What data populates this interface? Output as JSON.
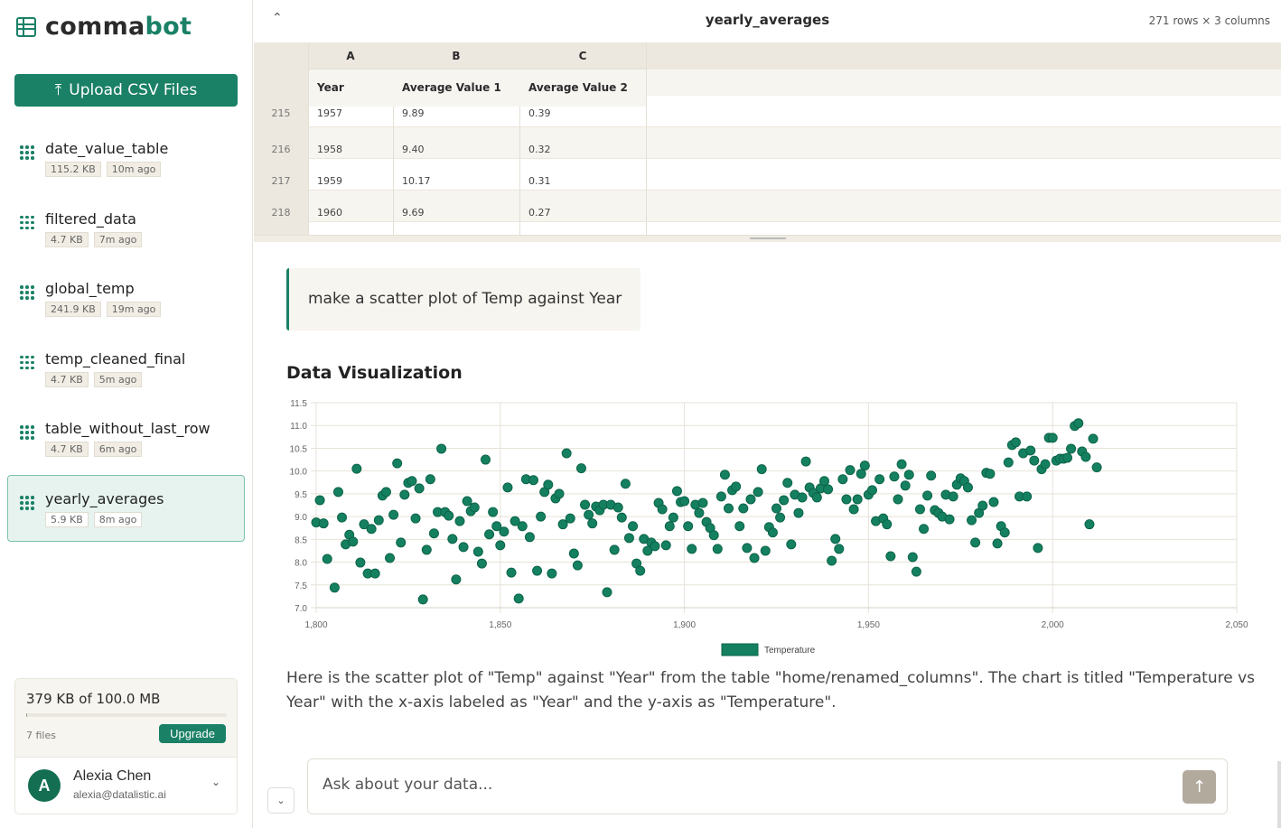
{
  "app": {
    "name_a": "comma",
    "name_b": "bot",
    "upload_label": "Upload CSV Files"
  },
  "files": [
    {
      "name": "date_value_table",
      "size": "115.2 KB",
      "age": "10m ago"
    },
    {
      "name": "filtered_data",
      "size": "4.7 KB",
      "age": "7m ago"
    },
    {
      "name": "global_temp",
      "size": "241.9 KB",
      "age": "19m ago"
    },
    {
      "name": "temp_cleaned_final",
      "size": "4.7 KB",
      "age": "5m ago"
    },
    {
      "name": "table_without_last_row",
      "size": "4.7 KB",
      "age": "6m ago"
    },
    {
      "name": "yearly_averages",
      "size": "5.9 KB",
      "age": "8m ago",
      "active": true
    }
  ],
  "usage": {
    "text": "379 KB of 100.0 MB",
    "fraction": 0.0037,
    "files": "7 files",
    "upgrade": "Upgrade"
  },
  "user": {
    "initial": "A",
    "name": "Alexia Chen",
    "email": "alexia@datalistic.ai"
  },
  "table": {
    "title": "yearly_averages",
    "dims": "271 rows × 3 columns",
    "col_letters": [
      "A",
      "B",
      "C"
    ],
    "headers": [
      "Year",
      "Average Value 1",
      "Average Value 2"
    ],
    "rows": [
      {
        "n": "215",
        "cells": [
          "1957",
          "9.89",
          "0.39"
        ]
      },
      {
        "n": "216",
        "cells": [
          "1958",
          "9.40",
          "0.32"
        ]
      },
      {
        "n": "217",
        "cells": [
          "1959",
          "10.17",
          "0.31"
        ]
      },
      {
        "n": "218",
        "cells": [
          "1960",
          "9.69",
          "0.27"
        ]
      }
    ]
  },
  "chat": {
    "user_msg": "make a scatter plot of Temp against Year",
    "viz_title": "Data Visualization",
    "answer": "Here is the scatter plot of \"Temp\" against \"Year\" from the table \"home/renamed_columns\". The chart is titled \"Temperature vs Year\" with the x-axis labeled as \"Year\" and the y-axis as \"Temperature\".",
    "input_placeholder": "Ask about your data..."
  },
  "colors": {
    "accent": "#1a8066",
    "point": "#148060"
  },
  "chart_data": {
    "type": "scatter",
    "xlim": [
      1800,
      2050
    ],
    "ylim": [
      7.0,
      11.5
    ],
    "xticks": [
      "1,800",
      "1,850",
      "1,900",
      "1,950",
      "2,000",
      "2,050"
    ],
    "yticks": [
      "7.0",
      "7.5",
      "8.0",
      "8.5",
      "9.0",
      "9.5",
      "10.0",
      "10.5",
      "11.0",
      "11.5"
    ],
    "legend": "Temperature",
    "legend_position": "bottom",
    "grid": true,
    "points": [
      [
        1800,
        8.87
      ],
      [
        1801,
        9.36
      ],
      [
        1802,
        8.85
      ],
      [
        1803,
        8.07
      ],
      [
        1805,
        7.44
      ],
      [
        1806,
        9.54
      ],
      [
        1807,
        8.98
      ],
      [
        1808,
        8.39
      ],
      [
        1809,
        8.6
      ],
      [
        1810,
        8.45
      ],
      [
        1811,
        10.05
      ],
      [
        1812,
        7.99
      ],
      [
        1813,
        8.83
      ],
      [
        1814,
        7.75
      ],
      [
        1815,
        8.73
      ],
      [
        1816,
        7.75
      ],
      [
        1817,
        8.92
      ],
      [
        1818,
        9.46
      ],
      [
        1819,
        9.54
      ],
      [
        1820,
        8.09
      ],
      [
        1821,
        9.04
      ],
      [
        1822,
        10.17
      ],
      [
        1823,
        8.43
      ],
      [
        1824,
        9.48
      ],
      [
        1825,
        9.74
      ],
      [
        1826,
        9.78
      ],
      [
        1827,
        8.96
      ],
      [
        1828,
        9.62
      ],
      [
        1829,
        7.18
      ],
      [
        1830,
        8.27
      ],
      [
        1831,
        9.82
      ],
      [
        1832,
        8.63
      ],
      [
        1833,
        9.1
      ],
      [
        1834,
        10.49
      ],
      [
        1835,
        9.1
      ],
      [
        1836,
        9.02
      ],
      [
        1837,
        8.51
      ],
      [
        1838,
        7.62
      ],
      [
        1839,
        8.9
      ],
      [
        1840,
        8.33
      ],
      [
        1841,
        9.34
      ],
      [
        1842,
        9.12
      ],
      [
        1843,
        9.2
      ],
      [
        1844,
        8.23
      ],
      [
        1845,
        7.97
      ],
      [
        1846,
        10.25
      ],
      [
        1847,
        8.61
      ],
      [
        1848,
        9.1
      ],
      [
        1849,
        8.79
      ],
      [
        1850,
        8.37
      ],
      [
        1851,
        8.67
      ],
      [
        1852,
        9.64
      ],
      [
        1853,
        7.77
      ],
      [
        1854,
        8.9
      ],
      [
        1855,
        7.2
      ],
      [
        1856,
        8.79
      ],
      [
        1857,
        9.82
      ],
      [
        1858,
        8.55
      ],
      [
        1859,
        9.8
      ],
      [
        1860,
        7.81
      ],
      [
        1861,
        9.0
      ],
      [
        1862,
        9.54
      ],
      [
        1863,
        9.7
      ],
      [
        1864,
        7.75
      ],
      [
        1865,
        9.4
      ],
      [
        1866,
        9.5
      ],
      [
        1867,
        8.83
      ],
      [
        1868,
        10.39
      ],
      [
        1869,
        8.96
      ],
      [
        1870,
        8.19
      ],
      [
        1871,
        7.93
      ],
      [
        1872,
        10.06
      ],
      [
        1873,
        9.26
      ],
      [
        1874,
        9.04
      ],
      [
        1875,
        8.85
      ],
      [
        1876,
        9.22
      ],
      [
        1877,
        9.14
      ],
      [
        1878,
        9.26
      ],
      [
        1879,
        7.34
      ],
      [
        1880,
        9.26
      ],
      [
        1881,
        8.27
      ],
      [
        1882,
        9.2
      ],
      [
        1883,
        8.98
      ],
      [
        1884,
        9.72
      ],
      [
        1885,
        8.53
      ],
      [
        1886,
        8.79
      ],
      [
        1887,
        7.97
      ],
      [
        1888,
        7.81
      ],
      [
        1889,
        8.51
      ],
      [
        1890,
        8.25
      ],
      [
        1891,
        8.43
      ],
      [
        1892,
        8.35
      ],
      [
        1893,
        9.3
      ],
      [
        1894,
        9.16
      ],
      [
        1895,
        8.37
      ],
      [
        1896,
        8.79
      ],
      [
        1897,
        8.98
      ],
      [
        1898,
        9.56
      ],
      [
        1899,
        9.32
      ],
      [
        1900,
        9.34
      ],
      [
        1901,
        8.79
      ],
      [
        1902,
        8.29
      ],
      [
        1903,
        9.26
      ],
      [
        1904,
        9.08
      ],
      [
        1905,
        9.3
      ],
      [
        1906,
        8.88
      ],
      [
        1907,
        8.75
      ],
      [
        1908,
        8.59
      ],
      [
        1909,
        8.29
      ],
      [
        1910,
        9.44
      ],
      [
        1911,
        9.92
      ],
      [
        1912,
        9.18
      ],
      [
        1913,
        9.58
      ],
      [
        1914,
        9.66
      ],
      [
        1915,
        8.79
      ],
      [
        1916,
        9.18
      ],
      [
        1917,
        8.31
      ],
      [
        1918,
        9.38
      ],
      [
        1919,
        8.09
      ],
      [
        1920,
        9.54
      ],
      [
        1921,
        10.04
      ],
      [
        1922,
        8.25
      ],
      [
        1923,
        8.77
      ],
      [
        1924,
        8.65
      ],
      [
        1925,
        9.18
      ],
      [
        1926,
        8.98
      ],
      [
        1927,
        9.36
      ],
      [
        1928,
        9.74
      ],
      [
        1929,
        8.39
      ],
      [
        1930,
        9.48
      ],
      [
        1931,
        9.08
      ],
      [
        1932,
        9.42
      ],
      [
        1933,
        10.21
      ],
      [
        1934,
        9.64
      ],
      [
        1935,
        9.52
      ],
      [
        1936,
        9.42
      ],
      [
        1937,
        9.62
      ],
      [
        1938,
        9.78
      ],
      [
        1939,
        9.6
      ],
      [
        1940,
        8.03
      ],
      [
        1941,
        8.51
      ],
      [
        1942,
        8.29
      ],
      [
        1943,
        9.82
      ],
      [
        1944,
        9.38
      ],
      [
        1945,
        10.02
      ],
      [
        1946,
        9.16
      ],
      [
        1947,
        9.38
      ],
      [
        1948,
        9.94
      ],
      [
        1949,
        10.12
      ],
      [
        1950,
        9.48
      ],
      [
        1951,
        9.58
      ],
      [
        1952,
        8.9
      ],
      [
        1953,
        9.82
      ],
      [
        1954,
        8.96
      ],
      [
        1955,
        8.83
      ],
      [
        1956,
        8.13
      ],
      [
        1957,
        9.88
      ],
      [
        1958,
        9.38
      ],
      [
        1959,
        10.15
      ],
      [
        1960,
        9.68
      ],
      [
        1961,
        9.92
      ],
      [
        1962,
        8.11
      ],
      [
        1963,
        7.79
      ],
      [
        1964,
        9.16
      ],
      [
        1965,
        8.73
      ],
      [
        1966,
        9.46
      ],
      [
        1967,
        9.9
      ],
      [
        1968,
        9.14
      ],
      [
        1969,
        9.08
      ],
      [
        1970,
        9.0
      ],
      [
        1971,
        9.48
      ],
      [
        1972,
        8.94
      ],
      [
        1973,
        9.44
      ],
      [
        1974,
        9.7
      ],
      [
        1975,
        9.84
      ],
      [
        1976,
        9.78
      ],
      [
        1977,
        9.64
      ],
      [
        1978,
        8.92
      ],
      [
        1979,
        8.43
      ],
      [
        1980,
        9.08
      ],
      [
        1981,
        9.24
      ],
      [
        1982,
        9.96
      ],
      [
        1983,
        9.94
      ],
      [
        1984,
        9.32
      ],
      [
        1985,
        8.41
      ],
      [
        1986,
        8.79
      ],
      [
        1987,
        8.65
      ],
      [
        1988,
        10.19
      ],
      [
        1989,
        10.57
      ],
      [
        1990,
        10.63
      ],
      [
        1991,
        9.44
      ],
      [
        1992,
        10.39
      ],
      [
        1993,
        9.44
      ],
      [
        1994,
        10.45
      ],
      [
        1995,
        10.23
      ],
      [
        1996,
        8.31
      ],
      [
        1997,
        10.04
      ],
      [
        1998,
        10.15
      ],
      [
        1999,
        10.73
      ],
      [
        2000,
        10.73
      ],
      [
        2001,
        10.23
      ],
      [
        2002,
        10.27
      ],
      [
        2003,
        10.27
      ],
      [
        2004,
        10.29
      ],
      [
        2005,
        10.49
      ],
      [
        2006,
        10.99
      ],
      [
        2007,
        11.05
      ],
      [
        2008,
        10.43
      ],
      [
        2009,
        10.31
      ],
      [
        2010,
        8.83
      ],
      [
        2011,
        10.71
      ],
      [
        2012,
        10.08
      ]
    ]
  }
}
